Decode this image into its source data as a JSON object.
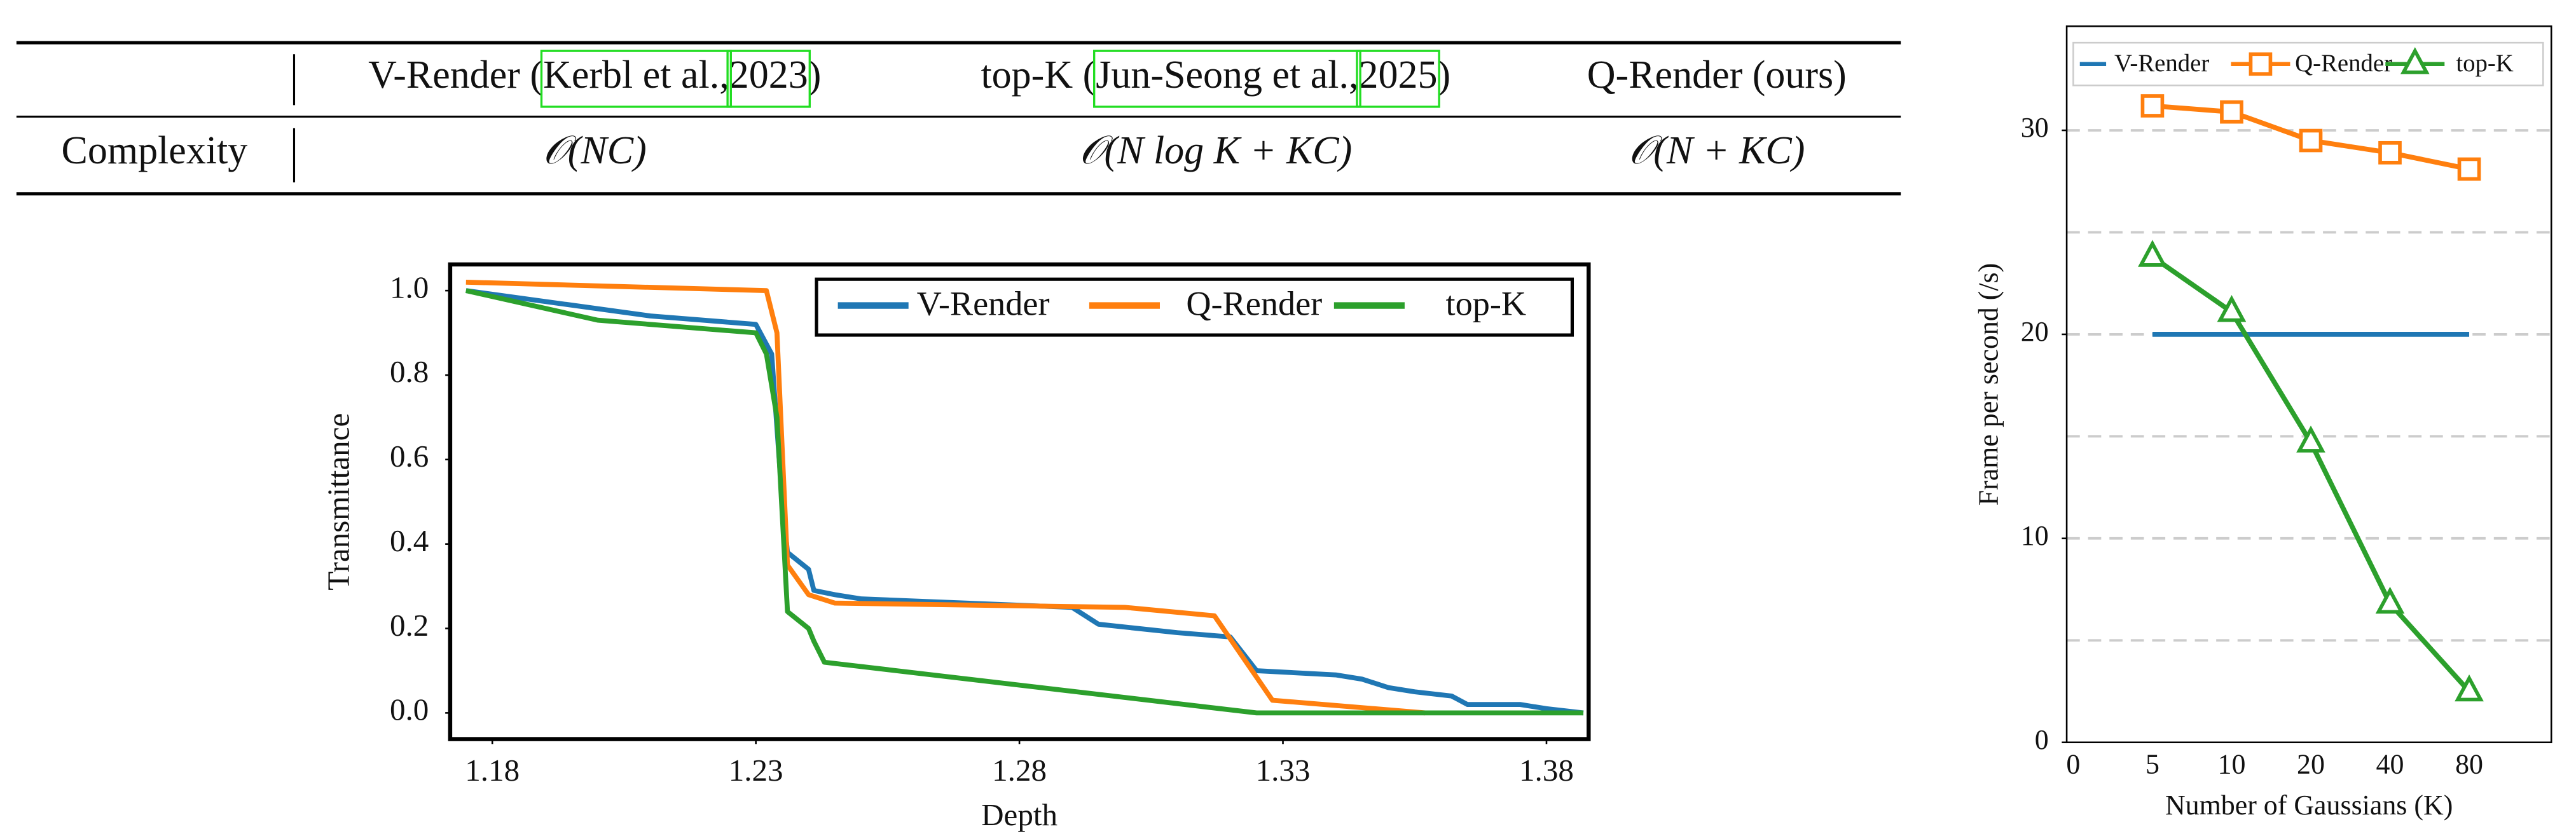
{
  "table": {
    "columns": [
      {
        "name": "V-Render (",
        "cite": "Kerbl et al.,",
        "year": "2023",
        "close": ")"
      },
      {
        "name": "top-K (",
        "cite": "Jun-Seong et al.,",
        "year": "2025",
        "close": ")"
      },
      {
        "name": "Q-Render (ours)"
      }
    ],
    "rows": [
      {
        "label": "Complexity",
        "cells": [
          "𝒪(NC)",
          "𝒪(N log K + KC)",
          "𝒪(N + KC)"
        ]
      }
    ]
  },
  "chart_data": [
    {
      "type": "line",
      "xlabel": "Depth",
      "ylabel": "Transmittance",
      "xlim": [
        1.172,
        1.388
      ],
      "xticks": [
        1.18,
        1.23,
        1.28,
        1.33,
        1.38
      ],
      "ylim": [
        -0.062,
        1.062
      ],
      "yticks": [
        {
          "value": 0,
          "label": "0.0"
        },
        {
          "value": 0.2,
          "label": "0.2"
        },
        {
          "value": 0.4,
          "label": "0.4"
        },
        {
          "value": 0.6,
          "label": "0.6"
        },
        {
          "value": 0.8,
          "label": "0.8"
        },
        {
          "value": 1,
          "label": "1.0"
        }
      ],
      "legend": "upper right",
      "series": [
        {
          "name": "V-Render",
          "color": "#1f77b4",
          "x": [
            1.175,
            1.21,
            1.23,
            1.233,
            1.235,
            1.236,
            1.24,
            1.241,
            1.245,
            1.25,
            1.29,
            1.295,
            1.31,
            1.32,
            1.325,
            1.34,
            1.345,
            1.35,
            1.355,
            1.362,
            1.365,
            1.375,
            1.38,
            1.387
          ],
          "values": [
            1.0,
            0.94,
            0.92,
            0.85,
            0.5,
            0.38,
            0.34,
            0.29,
            0.28,
            0.27,
            0.25,
            0.21,
            0.19,
            0.18,
            0.1,
            0.09,
            0.08,
            0.06,
            0.05,
            0.04,
            0.02,
            0.02,
            0.01,
            0.0
          ]
        },
        {
          "name": "Q-Render",
          "color": "#ff7f0e",
          "x": [
            1.175,
            1.232,
            1.234,
            1.236,
            1.24,
            1.245,
            1.3,
            1.317,
            1.328,
            1.357
          ],
          "values": [
            1.02,
            1.0,
            0.9,
            0.35,
            0.28,
            0.26,
            0.25,
            0.23,
            0.03,
            0.0
          ]
        },
        {
          "name": "top-K",
          "color": "#2ca02c",
          "x": [
            1.175,
            1.2,
            1.23,
            1.232,
            1.234,
            1.236,
            1.24,
            1.241,
            1.243,
            1.325,
            1.387
          ],
          "values": [
            1.0,
            0.93,
            0.9,
            0.85,
            0.7,
            0.24,
            0.2,
            0.17,
            0.12,
            0.0,
            0.0
          ]
        }
      ]
    },
    {
      "type": "line",
      "xlabel": "Number of Gaussians (K)",
      "ylabel": "Frame per second (/s)",
      "categories": [
        "0",
        "5",
        "10",
        "20",
        "40",
        "80"
      ],
      "ylim": [
        0,
        35.1
      ],
      "yticks": [
        0,
        10,
        20,
        30
      ],
      "ygrid": [
        5,
        10,
        15,
        20,
        25,
        30
      ],
      "legend": "upper center",
      "series": [
        {
          "name": "V-Render",
          "color": "#1f77b4",
          "marker": "none",
          "values": [
            null,
            20,
            20,
            20,
            20,
            20
          ]
        },
        {
          "name": "Q-Render",
          "color": "#ff7f0e",
          "marker": "square",
          "values": [
            null,
            31.2,
            30.9,
            29.5,
            28.9,
            28.1
          ]
        },
        {
          "name": "top-K",
          "color": "#2ca02c",
          "marker": "triangle",
          "values": [
            null,
            23.8,
            21.1,
            14.7,
            6.8,
            2.5
          ]
        }
      ]
    }
  ]
}
